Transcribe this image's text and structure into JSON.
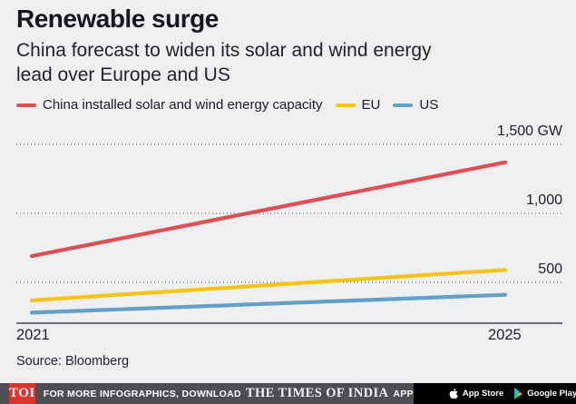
{
  "header": {
    "title": "Renewable surge",
    "subtitle_lines": [
      "China forecast to widen its solar and wind energy",
      "lead over Europe and US"
    ]
  },
  "chart_data": {
    "type": "line",
    "title": "Renewable surge",
    "subtitle": "China forecast to widen its solar and wind energy lead over Europe and US",
    "unit": "GW",
    "x": [
      2021,
      2025
    ],
    "x_tick_labels": [
      "2021",
      "2025"
    ],
    "y_ticks": [
      1500,
      1000,
      500
    ],
    "y_tick_labels": [
      "1,500 GW",
      "1,000",
      "500"
    ],
    "ylim": [
      200,
      1600
    ],
    "grid": "horizontal-dotted",
    "legend_position": "top",
    "series": [
      {
        "name": "China installed solar and wind energy capacity",
        "color": "#df4f54",
        "values": [
          690,
          1370
        ]
      },
      {
        "name": "EU",
        "color": "#f7c413",
        "values": [
          370,
          590
        ]
      },
      {
        "name": "US",
        "color": "#639fc7",
        "values": [
          280,
          410
        ]
      }
    ]
  },
  "source": "Source: Bloomberg",
  "footer": {
    "logo": "TOI",
    "message": "FOR MORE INFOGRAPHICS, DOWNLOAD",
    "brand": "THE TIMES OF INDIA",
    "app_suffix": "APP",
    "app_store_label": "App Store",
    "google_play_label": "Google Play"
  },
  "colors": {
    "background": "#edeff1",
    "footer_bar": "#4d4d54",
    "toi_red": "#da342f",
    "badge_black": "#000000",
    "gridline": "#55555b",
    "axis": "#43434a"
  }
}
